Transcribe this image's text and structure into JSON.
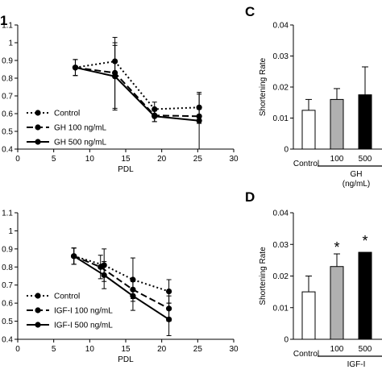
{
  "chart_data": [
    {
      "panel": "A",
      "type": "line",
      "xlabel": "PDL",
      "ylabel": "",
      "xlim": [
        0,
        30
      ],
      "ylim": [
        0.4,
        1.1
      ],
      "xticks": [
        "0",
        "5",
        "10",
        "15",
        "20",
        "25",
        "30"
      ],
      "yticks": [
        "0.4",
        "0.5",
        "0.6",
        "0.7",
        "0.8",
        "0.9",
        "1",
        "1.1"
      ],
      "legend": "bottom-left",
      "series": [
        {
          "name": "Control",
          "style": "dotted",
          "x": [
            8,
            13.5,
            19,
            25.2
          ],
          "y": [
            0.86,
            0.895,
            0.625,
            0.635
          ],
          "err": [
            0.045,
            0.09,
            0.04,
            0.075
          ]
        },
        {
          "name": "GH 100 ng/mL",
          "style": "dashed",
          "x": [
            8,
            13.5,
            19,
            25.2
          ],
          "y": [
            0.86,
            0.83,
            0.59,
            0.585
          ],
          "err": [
            0.045,
            0.2,
            0.035,
            0.04
          ]
        },
        {
          "name": "GH 500 ng/mL",
          "style": "solid",
          "x": [
            8,
            13.5,
            19,
            25.2
          ],
          "y": [
            0.86,
            0.81,
            0.585,
            0.56
          ],
          "err": [
            0.045,
            0.19,
            0.03,
            0.16
          ]
        }
      ]
    },
    {
      "panel": "C",
      "type": "bar",
      "ylabel": "Shortening Rate",
      "ylim": [
        0,
        0.04
      ],
      "yticks": [
        "0",
        "0.01",
        "0.02",
        "0.03",
        "0.04"
      ],
      "categories": [
        "Control",
        "100",
        "500"
      ],
      "group_label": "GH",
      "group_unit": "(ng/mL)",
      "values": [
        0.0125,
        0.016,
        0.0175
      ],
      "err": [
        0.0035,
        0.0035,
        0.009
      ],
      "fills": [
        "#ffffff",
        "#b0b0b0",
        "#000000"
      ]
    },
    {
      "panel": "",
      "type": "line",
      "xlabel": "PDL",
      "ylabel": "",
      "xlim": [
        0,
        30
      ],
      "ylim": [
        0.4,
        1.1
      ],
      "xticks": [
        "0",
        "5",
        "10",
        "15",
        "20",
        "25",
        "30"
      ],
      "yticks": [
        "0.4",
        "0.5",
        "0.6",
        "0.7",
        "0.8",
        "0.9",
        "1",
        "1.1"
      ],
      "legend": "bottom-left",
      "series": [
        {
          "name": "Control",
          "style": "dotted",
          "x": [
            7.8,
            12,
            16,
            21
          ],
          "y": [
            0.86,
            0.81,
            0.73,
            0.665
          ],
          "err": [
            0.045,
            0.09,
            0.12,
            0.065
          ]
        },
        {
          "name": "IGF-I 100 ng/mL",
          "style": "dashed",
          "x": [
            7.8,
            11.5,
            16,
            21
          ],
          "y": [
            0.86,
            0.8,
            0.675,
            0.57
          ],
          "err": [
            0.045,
            0.065,
            0.05,
            0.07
          ]
        },
        {
          "name": "IGF-I 500 ng/mL",
          "style": "solid",
          "x": [
            7.8,
            12,
            16,
            21
          ],
          "y": [
            0.86,
            0.755,
            0.64,
            0.51
          ],
          "err": [
            0.045,
            0.075,
            0.08,
            0.09
          ]
        }
      ]
    },
    {
      "panel": "D",
      "type": "bar",
      "ylabel": "Shortening Rate",
      "ylim": [
        0,
        0.04
      ],
      "yticks": [
        "0",
        "0.01",
        "0.02",
        "0.03",
        "0.04"
      ],
      "categories": [
        "Control",
        "100",
        "500"
      ],
      "group_label": "IGF-I",
      "values": [
        0.015,
        0.023,
        0.0275
      ],
      "err": [
        0.005,
        0.004,
        0
      ],
      "fills": [
        "#ffffff",
        "#b0b0b0",
        "#000000"
      ],
      "annotations": [
        "",
        "*",
        "*"
      ]
    }
  ],
  "panel_letter_a_partial": "1",
  "panel_letter_c": "C",
  "panel_letter_d": "D"
}
